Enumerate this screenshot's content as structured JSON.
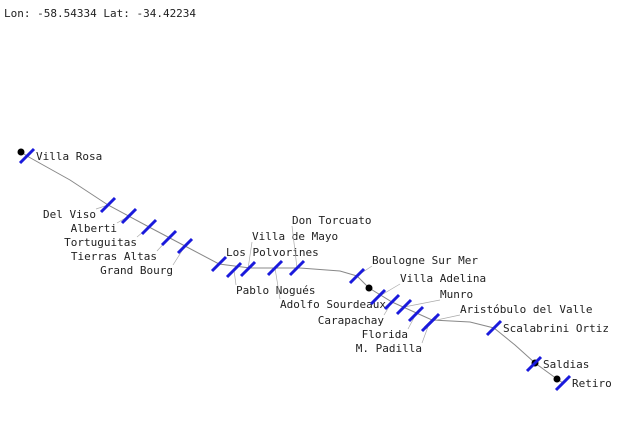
{
  "coords_readout": "Lon: -58.54334 Lat: -34.42234",
  "colors": {
    "marker": "#1a1adc",
    "line": "#888888",
    "dot": "#000000"
  },
  "stations": [
    {
      "name": "Villa Rosa"
    },
    {
      "name": "Del Viso"
    },
    {
      "name": "Alberti"
    },
    {
      "name": "Tortuguitas"
    },
    {
      "name": "Tierras Altas"
    },
    {
      "name": "Grand Bourg"
    },
    {
      "name": "Los Polvorines"
    },
    {
      "name": "Pablo Nogués"
    },
    {
      "name": "Villa de Mayo"
    },
    {
      "name": "Adolfo Sourdeaux"
    },
    {
      "name": "Don Torcuato"
    },
    {
      "name": "Boulogne Sur Mer"
    },
    {
      "name": "Villa Adelina"
    },
    {
      "name": "Carapachay"
    },
    {
      "name": "Munro"
    },
    {
      "name": "Florida"
    },
    {
      "name": "Aristóbulo del Valle"
    },
    {
      "name": "M. Padilla"
    },
    {
      "name": "Scalabrini Ortiz"
    },
    {
      "name": "Saldias"
    },
    {
      "name": "Retiro"
    }
  ]
}
